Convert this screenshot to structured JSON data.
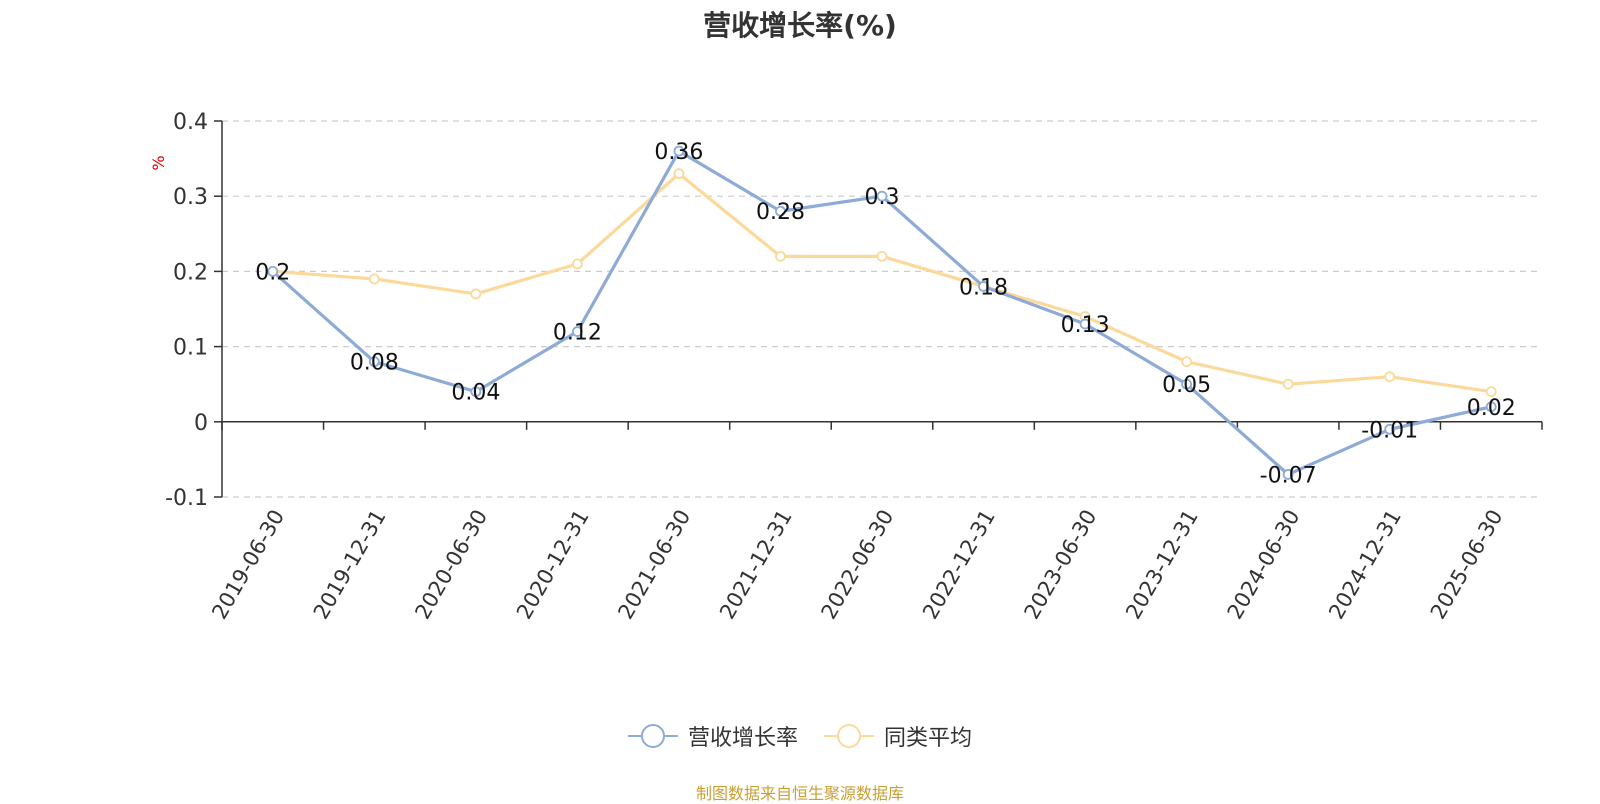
{
  "chart_data": {
    "type": "line",
    "title": "营收增长率(%)",
    "ylabel": "%",
    "xlabel": "",
    "categories": [
      "2019-06-30",
      "2019-12-31",
      "2020-06-30",
      "2020-12-31",
      "2021-06-30",
      "2021-12-31",
      "2022-06-30",
      "2022-12-31",
      "2023-06-30",
      "2023-12-31",
      "2024-06-30",
      "2024-12-31",
      "2025-06-30"
    ],
    "series": [
      {
        "name": "营收增长率",
        "color": "#8eaad6",
        "values": [
          0.2,
          0.08,
          0.04,
          0.12,
          0.36,
          0.28,
          0.3,
          0.18,
          0.13,
          0.05,
          -0.07,
          -0.01,
          0.02
        ],
        "data_labels": true
      },
      {
        "name": "同类平均",
        "color": "#fbd99a",
        "values": [
          0.2,
          0.19,
          0.17,
          0.21,
          0.33,
          0.22,
          0.22,
          0.18,
          0.14,
          0.08,
          0.05,
          0.06,
          0.04
        ],
        "data_labels": false
      }
    ],
    "ylim": [
      -0.1,
      0.4
    ],
    "yticks": [
      "0.4",
      "0.3",
      "0.2",
      "0.1",
      "0",
      "-0.1"
    ],
    "grid": true,
    "legend_position": "bottom"
  },
  "footer": "制图数据来自恒生聚源数据库"
}
